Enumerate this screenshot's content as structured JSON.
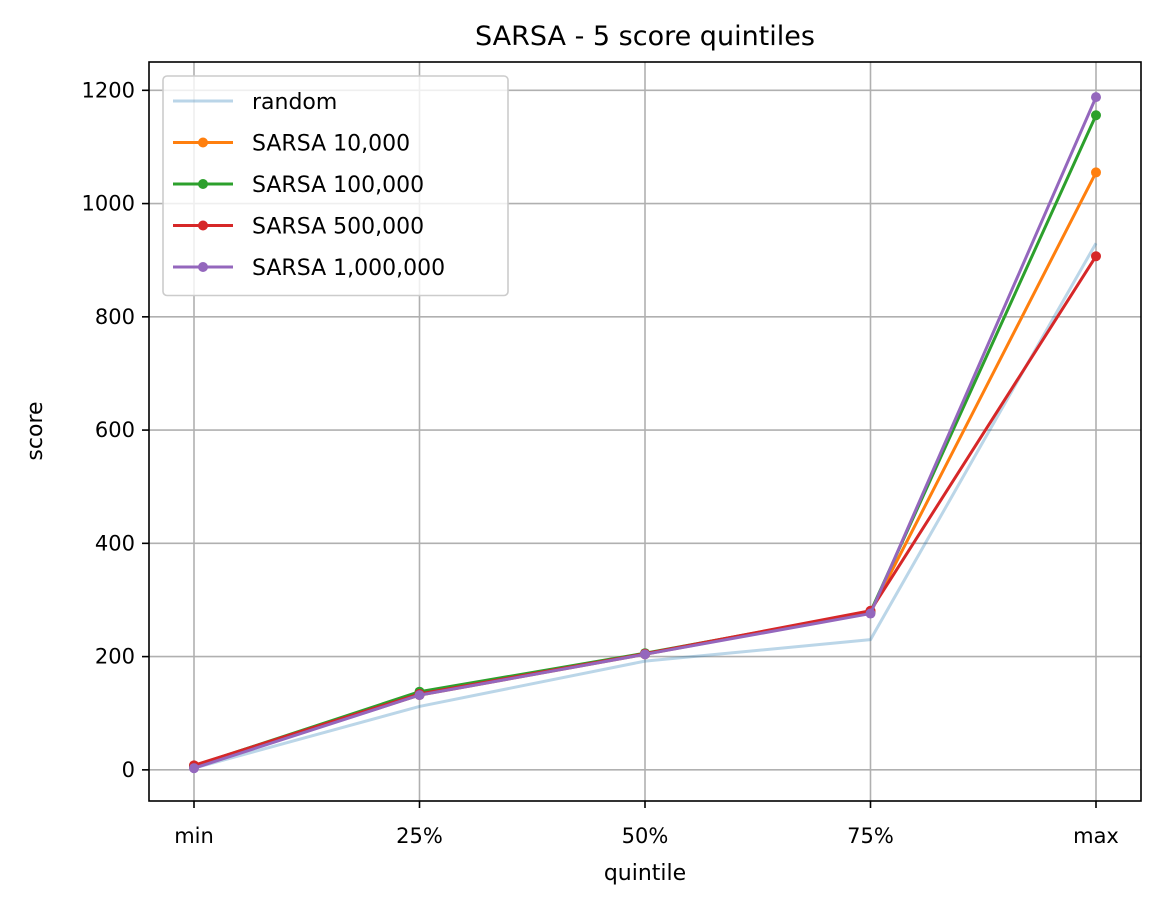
{
  "chart_data": {
    "type": "line",
    "title": "SARSA - 5 score quintiles",
    "xlabel": "quintile",
    "ylabel": "score",
    "categories": [
      "min",
      "25%",
      "50%",
      "75%",
      "max"
    ],
    "ylim": [
      -55,
      1250
    ],
    "yticks": [
      0,
      200,
      400,
      600,
      800,
      1000,
      1200
    ],
    "grid": true,
    "legend_position": "top-left",
    "series": [
      {
        "name": "random",
        "color": "#1f77b4",
        "opacity": 0.3,
        "markers": false,
        "values": [
          3,
          112,
          192,
          230,
          930
        ]
      },
      {
        "name": "SARSA 10,000",
        "color": "#ff7f0e",
        "opacity": 1,
        "markers": true,
        "values": [
          5,
          132,
          204,
          278,
          1055
        ]
      },
      {
        "name": "SARSA 100,000",
        "color": "#2ca02c",
        "opacity": 1,
        "markers": true,
        "values": [
          7,
          138,
          206,
          279,
          1156
        ]
      },
      {
        "name": "SARSA 500,000",
        "color": "#d62728",
        "opacity": 1,
        "markers": true,
        "values": [
          8,
          134,
          205,
          281,
          907
        ]
      },
      {
        "name": "SARSA 1,000,000",
        "color": "#9467bd",
        "opacity": 1,
        "markers": true,
        "values": [
          3,
          132,
          204,
          276,
          1188
        ]
      }
    ]
  }
}
